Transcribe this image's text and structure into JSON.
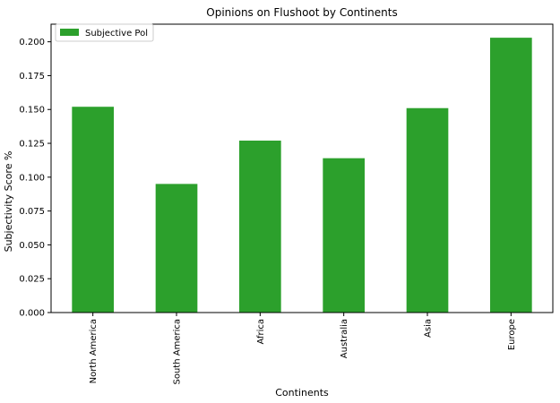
{
  "chart_data": {
    "type": "bar",
    "title": "Opinions on Flushoot by Continents",
    "xlabel": "Continents",
    "ylabel": "Subjectivity Score %",
    "categories": [
      "North America",
      "South America",
      "Africa",
      "Australia",
      "Asia",
      "Europe"
    ],
    "series": [
      {
        "name": "Subjective Pol",
        "values": [
          0.152,
          0.095,
          0.127,
          0.114,
          0.151,
          0.203
        ],
        "color": "#2ca02c"
      }
    ],
    "ylim": [
      0,
      0.213
    ],
    "yticks": [
      "0.000",
      "0.025",
      "0.050",
      "0.075",
      "0.100",
      "0.125",
      "0.150",
      "0.175",
      "0.200"
    ],
    "grid": false,
    "legend_position": "upper-left"
  }
}
